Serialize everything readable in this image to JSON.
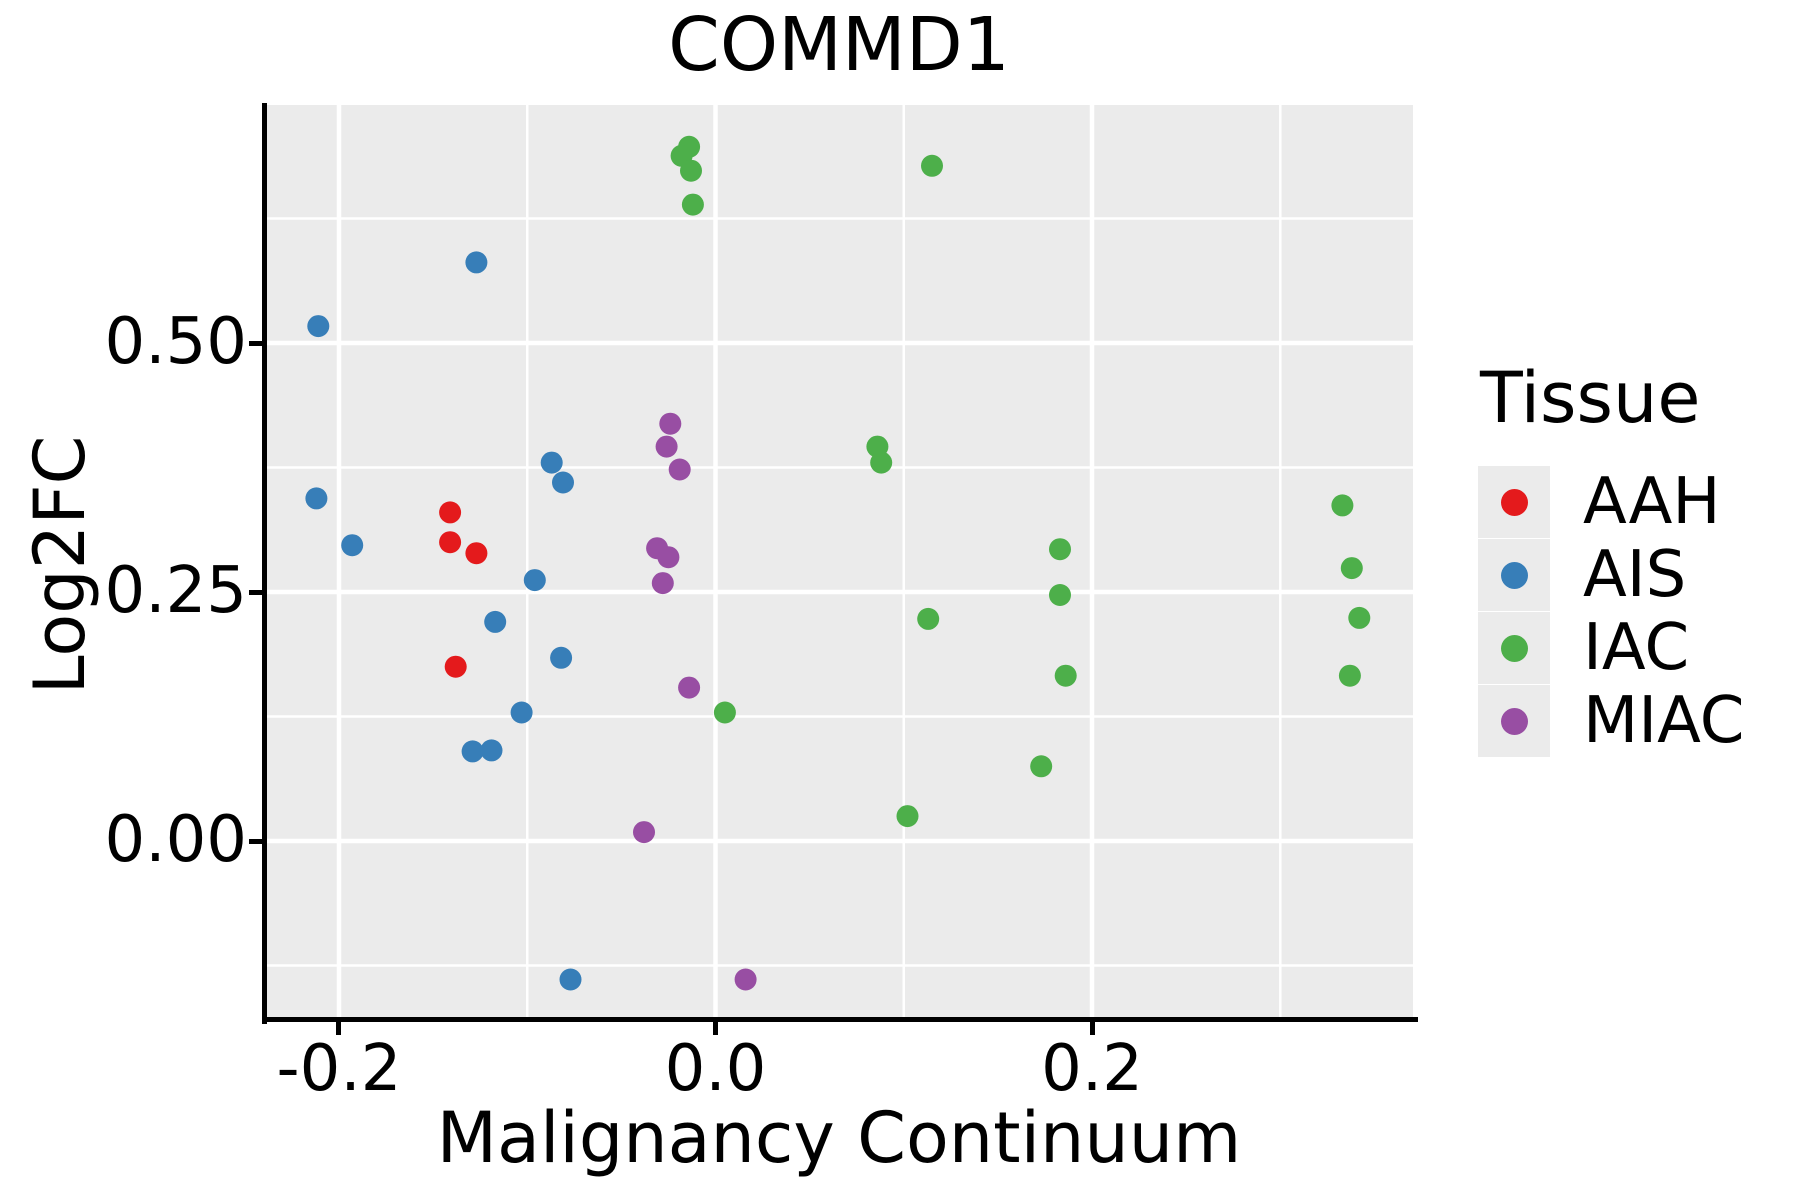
{
  "chart": {
    "title": "COMMD1"
  },
  "chart_data": {
    "type": "scatter",
    "title": "COMMD1",
    "xlabel": "Malignancy Continuum",
    "ylabel": "Log2FC",
    "x_domain": [
      -0.2393,
      0.3705
    ],
    "y_domain": [
      -0.1797,
      0.739
    ],
    "grid": "on",
    "legend_position": "right",
    "x_major_ticks": [
      -0.2,
      0.0,
      0.2
    ],
    "x_tick_labels": [
      "-0.2",
      "0.0",
      "0.2"
    ],
    "x_minor_ticks": [
      -0.1,
      0.1,
      0.3
    ],
    "y_major_ticks": [
      0.0,
      0.25,
      0.5
    ],
    "y_tick_labels": [
      "0.00",
      "0.25",
      "0.50"
    ],
    "y_minor_ticks": [
      -0.125,
      0.125,
      0.375,
      0.625
    ],
    "series": [
      {
        "name": "AAH",
        "color": "#E41A1C",
        "points": [
          [
            -0.141,
            0.33
          ],
          [
            -0.141,
            0.3
          ],
          [
            -0.127,
            0.289
          ],
          [
            -0.138,
            0.175
          ]
        ]
      },
      {
        "name": "AIS",
        "color": "#377EB8",
        "points": [
          [
            -0.127,
            0.581
          ],
          [
            -0.211,
            0.517
          ],
          [
            -0.212,
            0.344
          ],
          [
            -0.193,
            0.297
          ],
          [
            -0.087,
            0.38
          ],
          [
            -0.081,
            0.36
          ],
          [
            -0.096,
            0.262
          ],
          [
            -0.117,
            0.22
          ],
          [
            -0.082,
            0.184
          ],
          [
            -0.129,
            0.09
          ],
          [
            -0.119,
            0.091
          ],
          [
            -0.103,
            0.129
          ],
          [
            -0.077,
            -0.139
          ]
        ]
      },
      {
        "name": "IAC",
        "color": "#4DAF4A",
        "points": [
          [
            -0.014,
            0.697
          ],
          [
            -0.018,
            0.688
          ],
          [
            -0.013,
            0.673
          ],
          [
            -0.012,
            0.639
          ],
          [
            0.115,
            0.678
          ],
          [
            0.086,
            0.396
          ],
          [
            0.088,
            0.38
          ],
          [
            0.183,
            0.293
          ],
          [
            0.183,
            0.247
          ],
          [
            0.113,
            0.223
          ],
          [
            0.186,
            0.166
          ],
          [
            0.005,
            0.129
          ],
          [
            0.173,
            0.075
          ],
          [
            0.102,
            0.025
          ],
          [
            0.333,
            0.337
          ],
          [
            0.338,
            0.274
          ],
          [
            0.342,
            0.224
          ],
          [
            0.337,
            0.166
          ]
        ]
      },
      {
        "name": "MIAC",
        "color": "#984EA3",
        "points": [
          [
            -0.024,
            0.419
          ],
          [
            -0.026,
            0.396
          ],
          [
            -0.019,
            0.373
          ],
          [
            -0.031,
            0.294
          ],
          [
            -0.025,
            0.285
          ],
          [
            -0.028,
            0.259
          ],
          [
            -0.014,
            0.154
          ],
          [
            -0.038,
            0.009
          ],
          [
            0.016,
            -0.139
          ]
        ]
      }
    ]
  },
  "axes": {
    "x": {
      "title": "Malignancy Continuum",
      "ticks": [
        {
          "label": "-0.2",
          "value": -0.2
        },
        {
          "label": "0.0",
          "value": 0.0
        },
        {
          "label": "0.2",
          "value": 0.2
        }
      ]
    },
    "y": {
      "title": "Log2FC",
      "ticks": [
        {
          "label": "0.00",
          "value": 0.0
        },
        {
          "label": "0.25",
          "value": 0.25
        },
        {
          "label": "0.50",
          "value": 0.5
        }
      ]
    }
  },
  "legend": {
    "title": "Tissue",
    "items": [
      {
        "label": "AAH",
        "color": "#E41A1C"
      },
      {
        "label": "AIS",
        "color": "#377EB8"
      },
      {
        "label": "IAC",
        "color": "#4DAF4A"
      },
      {
        "label": "MIAC",
        "color": "#984EA3"
      }
    ]
  },
  "style": {
    "panel_bg": "#EBEBEB",
    "grid_color": "#FFFFFF",
    "axis_color": "#000000",
    "text_color": "#000000",
    "legend_key_bg": "#EBEBEB"
  }
}
